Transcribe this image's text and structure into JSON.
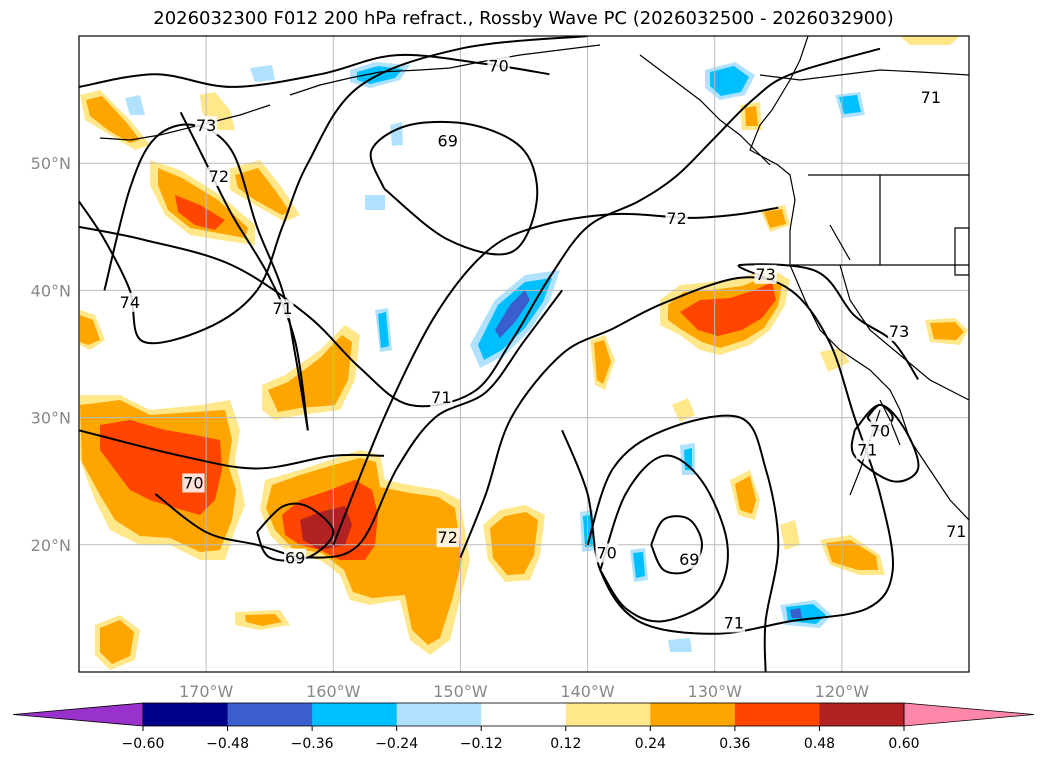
{
  "title": "2026032300 F012 200 hPa refract., Rossby Wave PC (2026032500 - 2026032900)",
  "map": {
    "projection": "equirectangular",
    "lon_range": [
      -180,
      -110
    ],
    "lat_range": [
      10,
      60
    ],
    "lon_ticks": [
      {
        "value": -170,
        "label": "170°W"
      },
      {
        "value": -160,
        "label": "160°W"
      },
      {
        "value": -150,
        "label": "150°W"
      },
      {
        "value": -140,
        "label": "140°W"
      },
      {
        "value": -130,
        "label": "130°W"
      },
      {
        "value": -120,
        "label": "120°W"
      }
    ],
    "lat_ticks": [
      {
        "value": 20,
        "label": "20°N"
      },
      {
        "value": 30,
        "label": "30°N"
      },
      {
        "value": 40,
        "label": "40°N"
      },
      {
        "value": 50,
        "label": "50°N"
      }
    ],
    "grid": true,
    "coastlines": true,
    "borders": true
  },
  "colorbar": {
    "orientation": "horizontal",
    "extend": "both",
    "levels": [
      -0.6,
      -0.48,
      -0.36,
      -0.24,
      -0.12,
      0.12,
      0.24,
      0.36,
      0.48,
      0.6
    ],
    "labels": [
      "-0.60",
      "-0.48",
      "-0.36",
      "-0.24",
      "-0.12",
      "0.12",
      "0.24",
      "0.36",
      "0.48",
      "0.60"
    ],
    "colors": [
      "#9932cc",
      "#00008b",
      "#3a5fcd",
      "#00bfff",
      "#b0e2ff",
      "#ffffff",
      "#ffe78a",
      "#ffa500",
      "#ff4500",
      "#b22222",
      "#ff88aa"
    ]
  },
  "contour_labels": [
    {
      "text": "70",
      "lon": -147,
      "lat": 57.7
    },
    {
      "text": "73",
      "lon": -170,
      "lat": 53.0
    },
    {
      "text": "72",
      "lon": -169,
      "lat": 49.0
    },
    {
      "text": "69",
      "lon": -151,
      "lat": 51.8
    },
    {
      "text": "72",
      "lon": -133,
      "lat": 45.7
    },
    {
      "text": "71",
      "lon": -113,
      "lat": 55.2
    },
    {
      "text": "74",
      "lon": -176,
      "lat": 39.1
    },
    {
      "text": "71",
      "lon": -164,
      "lat": 38.6
    },
    {
      "text": "73",
      "lon": -126,
      "lat": 41.3
    },
    {
      "text": "73",
      "lon": -115.5,
      "lat": 36.8
    },
    {
      "text": "71",
      "lon": -151.5,
      "lat": 31.6
    },
    {
      "text": "70",
      "lon": -171,
      "lat": 24.9
    },
    {
      "text": "69",
      "lon": -163,
      "lat": 19.0
    },
    {
      "text": "72",
      "lon": -151,
      "lat": 20.6
    },
    {
      "text": "70",
      "lon": -138.5,
      "lat": 19.4
    },
    {
      "text": "69",
      "lon": -132,
      "lat": 18.9
    },
    {
      "text": "71",
      "lon": -128.5,
      "lat": 13.9
    },
    {
      "text": "70",
      "lon": -117,
      "lat": 29.0
    },
    {
      "text": "71",
      "lon": -118,
      "lat": 27.5
    },
    {
      "text": "71",
      "lon": -111,
      "lat": 21.1
    }
  ],
  "contours": [
    {
      "level": 70,
      "points": [
        [
          -180,
          56
        ],
        [
          -174,
          57
        ],
        [
          -168,
          56
        ],
        [
          -161,
          57
        ],
        [
          -155,
          58.5
        ],
        [
          -148,
          57.8
        ],
        [
          -143,
          57
        ]
      ]
    },
    {
      "level": 73,
      "points": [
        [
          -178,
          40
        ],
        [
          -176,
          48
        ],
        [
          -174,
          52
        ],
        [
          -171,
          53
        ],
        [
          -168,
          51
        ],
        [
          -166,
          45
        ],
        [
          -164,
          40
        ],
        [
          -163,
          35
        ],
        [
          -162,
          29
        ]
      ]
    },
    {
      "level": 72,
      "points": [
        [
          -172,
          54
        ],
        [
          -170,
          50
        ],
        [
          -168,
          46
        ],
        [
          -165,
          41
        ],
        [
          -163,
          36
        ],
        [
          -162,
          29
        ]
      ]
    },
    {
      "level": 71,
      "points": [
        [
          -180,
          47
        ],
        [
          -178,
          44
        ],
        [
          -176,
          40
        ],
        [
          -175,
          36
        ],
        [
          -170,
          37
        ],
        [
          -166,
          40
        ],
        [
          -164,
          45
        ],
        [
          -162,
          50
        ],
        [
          -158,
          56
        ],
        [
          -150,
          59
        ],
        [
          -140,
          60
        ]
      ]
    },
    {
      "level": 69,
      "points": [
        [
          -156,
          48
        ],
        [
          -157,
          51
        ],
        [
          -154,
          53
        ],
        [
          -149,
          53
        ],
        [
          -145,
          51
        ],
        [
          -144,
          47
        ],
        [
          -146,
          43
        ],
        [
          -151,
          44
        ],
        [
          -156,
          48
        ]
      ]
    },
    {
      "level": 71,
      "points": [
        [
          -180,
          45
        ],
        [
          -175,
          44
        ],
        [
          -168,
          42
        ],
        [
          -162,
          38
        ],
        [
          -158,
          34
        ],
        [
          -154,
          31
        ],
        [
          -149,
          32
        ],
        [
          -146,
          36
        ],
        [
          -143,
          41
        ],
        [
          -140,
          45
        ],
        [
          -136,
          47
        ],
        [
          -133,
          49
        ],
        [
          -130,
          52
        ],
        [
          -127,
          55
        ],
        [
          -124,
          57
        ],
        [
          -117,
          59
        ]
      ]
    },
    {
      "level": 72,
      "points": [
        [
          -160,
          20
        ],
        [
          -156,
          30
        ],
        [
          -152,
          38
        ],
        [
          -148,
          43
        ],
        [
          -144,
          45
        ],
        [
          -138,
          46
        ],
        [
          -132,
          45.7
        ],
        [
          -128,
          46
        ],
        [
          -125,
          46.5
        ]
      ]
    },
    {
      "level": 73,
      "points": [
        [
          -126,
          41
        ],
        [
          -128,
          42
        ],
        [
          -122,
          41.5
        ],
        [
          -119,
          38
        ],
        [
          -116,
          36
        ],
        [
          -114,
          33
        ]
      ]
    },
    {
      "level": 70,
      "points": [
        [
          -180,
          29
        ],
        [
          -172,
          27
        ],
        [
          -166,
          26
        ],
        [
          -160,
          27
        ],
        [
          -156,
          27
        ]
      ]
    },
    {
      "level": 70,
      "points": [
        [
          -174,
          24
        ],
        [
          -170,
          21
        ],
        [
          -166,
          20
        ],
        [
          -162,
          19
        ],
        [
          -158,
          20
        ],
        [
          -155,
          26
        ],
        [
          -152,
          30
        ],
        [
          -148,
          32
        ],
        [
          -145,
          36
        ],
        [
          -142,
          40
        ]
      ]
    },
    {
      "level": 69,
      "points": [
        [
          -166,
          21
        ],
        [
          -164,
          23
        ],
        [
          -162,
          23
        ],
        [
          -160,
          21
        ],
        [
          -162,
          19
        ],
        [
          -165,
          19
        ],
        [
          -166,
          21
        ]
      ]
    },
    {
      "level": 72,
      "points": [
        [
          -150,
          19
        ],
        [
          -148,
          24
        ],
        [
          -146,
          30
        ],
        [
          -142,
          35
        ],
        [
          -138,
          37
        ],
        [
          -134,
          39
        ],
        [
          -128,
          41
        ],
        [
          -124,
          40
        ],
        [
          -121,
          36
        ],
        [
          -119,
          30
        ],
        [
          -117,
          24
        ],
        [
          -116,
          18
        ],
        [
          -118,
          15
        ],
        [
          -124,
          14
        ],
        [
          -130,
          13
        ],
        [
          -136,
          14
        ],
        [
          -139,
          18
        ],
        [
          -140,
          24
        ],
        [
          -142,
          29
        ]
      ]
    },
    {
      "level": 70,
      "points": [
        [
          -139,
          18
        ],
        [
          -137,
          24
        ],
        [
          -134,
          27
        ],
        [
          -131,
          25
        ],
        [
          -129,
          20
        ],
        [
          -130,
          16
        ],
        [
          -134,
          14
        ],
        [
          -137,
          15
        ],
        [
          -139,
          18
        ]
      ]
    },
    {
      "level": 69,
      "points": [
        [
          -135,
          20
        ],
        [
          -134,
          22
        ],
        [
          -132,
          22
        ],
        [
          -131,
          20
        ],
        [
          -132,
          18
        ],
        [
          -134,
          18
        ],
        [
          -135,
          20
        ]
      ]
    },
    {
      "level": 71,
      "points": [
        [
          -140,
          20
        ],
        [
          -138,
          26
        ],
        [
          -134,
          29
        ],
        [
          -128,
          30
        ],
        [
          -126,
          26
        ],
        [
          -125,
          20
        ],
        [
          -126,
          14
        ],
        [
          -126,
          10
        ]
      ]
    },
    {
      "level": 71,
      "points": [
        [
          -119,
          29
        ],
        [
          -117,
          31
        ],
        [
          -115,
          29
        ],
        [
          -114,
          26
        ],
        [
          -116,
          25
        ],
        [
          -119,
          27
        ],
        [
          -119,
          29
        ]
      ]
    },
    {
      "level": 70,
      "points": [
        [
          -118,
          30
        ],
        [
          -117,
          29
        ],
        [
          -116,
          30
        ],
        [
          -117,
          31
        ],
        [
          -118,
          30
        ]
      ]
    }
  ],
  "shading_note": "positive (warm) and negative (cool) Rossby wave PC anomaly patches over North Pacific"
}
